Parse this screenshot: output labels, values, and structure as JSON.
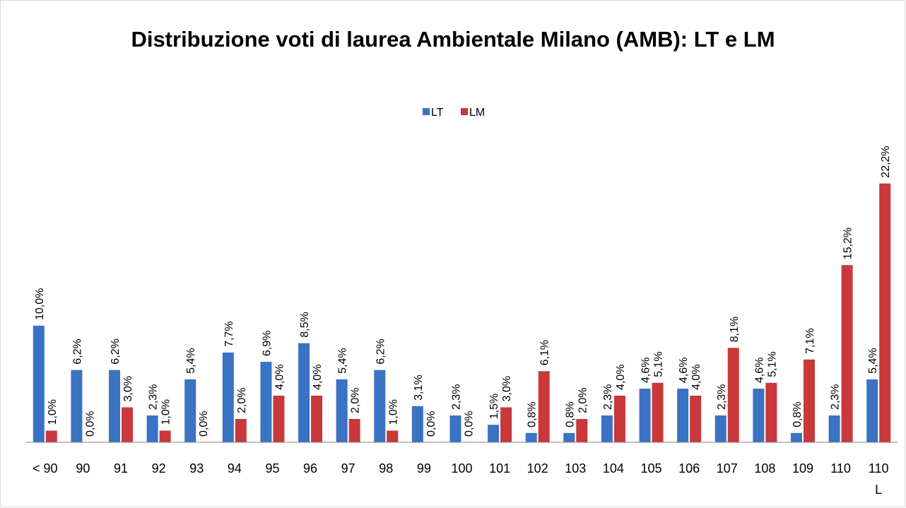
{
  "chart_data": {
    "type": "bar",
    "title": "Distribuzione voti di laurea Ambientale Milano (AMB): LT e LM",
    "categories": [
      "< 90",
      "90",
      "91",
      "92",
      "93",
      "94",
      "95",
      "96",
      "97",
      "98",
      "99",
      "100",
      "101",
      "102",
      "103",
      "104",
      "105",
      "106",
      "107",
      "108",
      "109",
      "110",
      "110 L"
    ],
    "series": [
      {
        "name": "LT",
        "color": "#3a72c4",
        "values": [
          10.0,
          6.2,
          6.2,
          2.3,
          5.4,
          7.7,
          6.9,
          8.5,
          5.4,
          6.2,
          3.1,
          2.3,
          1.5,
          0.8,
          0.8,
          2.3,
          4.6,
          4.6,
          2.3,
          4.6,
          0.8,
          2.3,
          5.4
        ],
        "value_labels": [
          "10,0%",
          "6,2%",
          "6,2%",
          "2,3%",
          "5,4%",
          "7,7%",
          "6,9%",
          "8,5%",
          "5,4%",
          "6,2%",
          "3,1%",
          "2,3%",
          "1,5%",
          "0,8%",
          "0,8%",
          "2,3%",
          "4,6%",
          "4,6%",
          "2,3%",
          "4,6%",
          "0,8%",
          "2,3%",
          "5,4%"
        ]
      },
      {
        "name": "LM",
        "color": "#c9383a",
        "values": [
          1.0,
          0.0,
          3.0,
          1.0,
          0.0,
          2.0,
          4.0,
          4.0,
          2.0,
          1.0,
          0.0,
          0.0,
          3.0,
          6.1,
          2.0,
          4.0,
          5.1,
          4.0,
          8.1,
          5.1,
          7.1,
          15.2,
          22.2
        ],
        "value_labels": [
          "1,0%",
          "0,0%",
          "3,0%",
          "1,0%",
          "0,0%",
          "2,0%",
          "4,0%",
          "4,0%",
          "2,0%",
          "1,0%",
          "0,0%",
          "0,0%",
          "3,0%",
          "6,1%",
          "2,0%",
          "4,0%",
          "5,1%",
          "4,0%",
          "8,1%",
          "5,1%",
          "7,1%",
          "15,2%",
          "22,2%"
        ]
      }
    ],
    "ylim": [
      0,
      25
    ],
    "legend": "top"
  }
}
